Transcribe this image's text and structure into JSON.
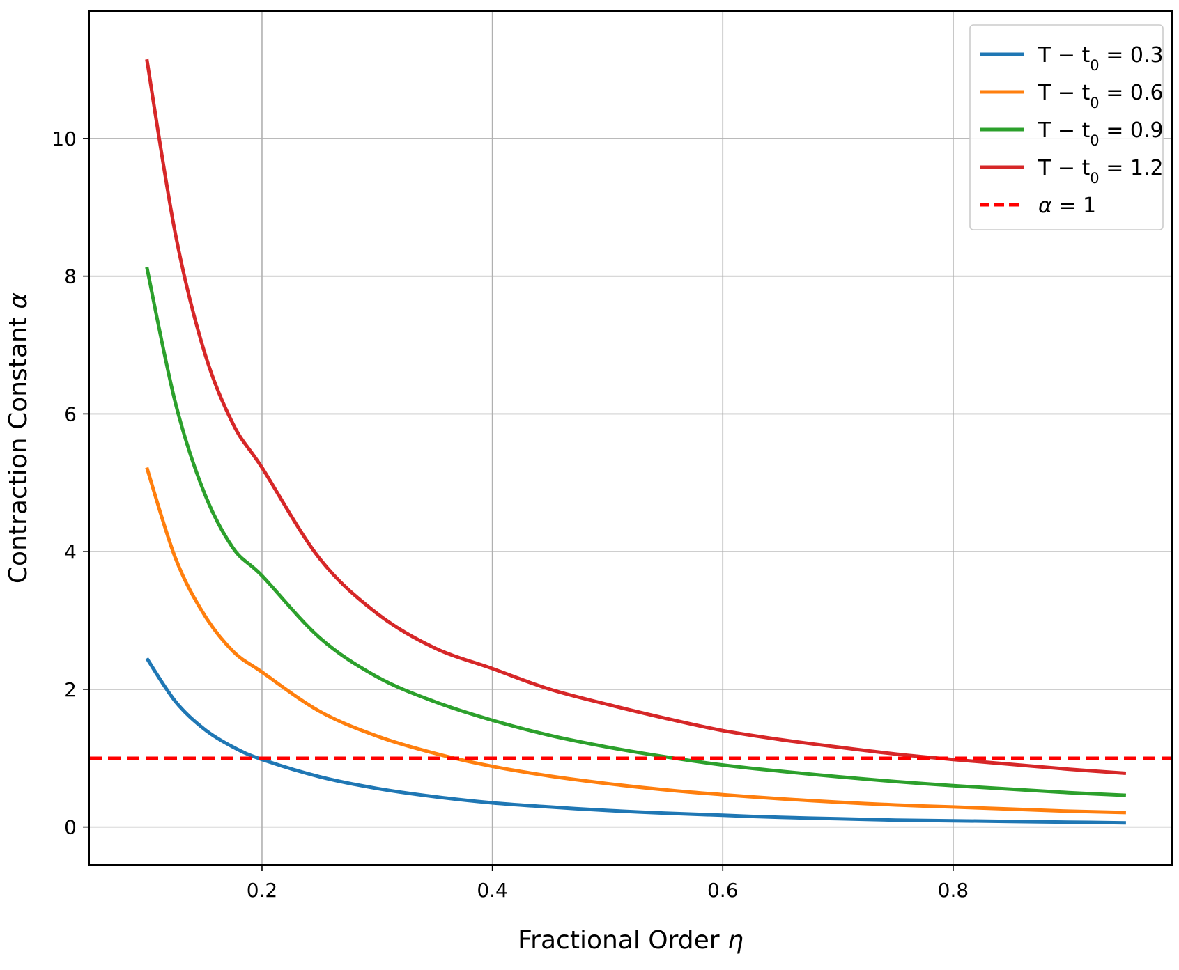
{
  "chart_data": {
    "type": "line",
    "xlabel_text": "Fractional Order ",
    "xlabel_sym": "η",
    "ylabel_text": "Contraction Constant ",
    "ylabel_sym": "α",
    "xlim": [
      0.05,
      0.99
    ],
    "ylim": [
      -0.55,
      11.85
    ],
    "xticks": [
      0.2,
      0.4,
      0.6,
      0.8
    ],
    "xtick_labels": [
      "0.2",
      "0.4",
      "0.6",
      "0.8"
    ],
    "yticks": [
      0,
      2,
      4,
      6,
      8,
      10
    ],
    "ytick_labels": [
      "0",
      "2",
      "4",
      "6",
      "8",
      "10"
    ],
    "grid": true,
    "legend_position": "top-right",
    "x": [
      0.1,
      0.125,
      0.15,
      0.175,
      0.2,
      0.25,
      0.3,
      0.35,
      0.4,
      0.45,
      0.5,
      0.55,
      0.6,
      0.65,
      0.7,
      0.75,
      0.8,
      0.85,
      0.9,
      0.95
    ],
    "series": [
      {
        "name_parts": [
          "T − t",
          "0",
          " = 0.3"
        ],
        "color": "#1f77b4",
        "values": [
          2.45,
          1.82,
          1.42,
          1.16,
          0.98,
          0.73,
          0.56,
          0.44,
          0.35,
          0.29,
          0.24,
          0.2,
          0.17,
          0.14,
          0.12,
          0.1,
          0.09,
          0.08,
          0.07,
          0.06
        ]
      },
      {
        "name_parts": [
          "T − t",
          "0",
          " = 0.6"
        ],
        "color": "#ff7f0e",
        "values": [
          5.22,
          3.9,
          3.08,
          2.55,
          2.25,
          1.68,
          1.32,
          1.07,
          0.88,
          0.74,
          0.63,
          0.54,
          0.47,
          0.41,
          0.36,
          0.32,
          0.29,
          0.26,
          0.23,
          0.21
        ]
      },
      {
        "name_parts": [
          "T − t",
          "0",
          " = 0.9"
        ],
        "color": "#2ca02c",
        "values": [
          8.13,
          6.15,
          4.85,
          4.05,
          3.65,
          2.75,
          2.18,
          1.82,
          1.55,
          1.33,
          1.16,
          1.02,
          0.9,
          0.81,
          0.73,
          0.66,
          0.6,
          0.55,
          0.5,
          0.46
        ]
      },
      {
        "name_parts": [
          "T − t",
          "0",
          " = 1.2"
        ],
        "color": "#d62728",
        "values": [
          11.15,
          8.6,
          6.9,
          5.85,
          5.22,
          3.9,
          3.1,
          2.6,
          2.3,
          2.0,
          1.78,
          1.58,
          1.4,
          1.27,
          1.16,
          1.06,
          0.98,
          0.91,
          0.84,
          0.78
        ]
      }
    ],
    "reference_line": {
      "name_parts": [
        "α",
        " = 1"
      ],
      "y": 1,
      "color": "#ff0000",
      "style": "dashed"
    }
  }
}
